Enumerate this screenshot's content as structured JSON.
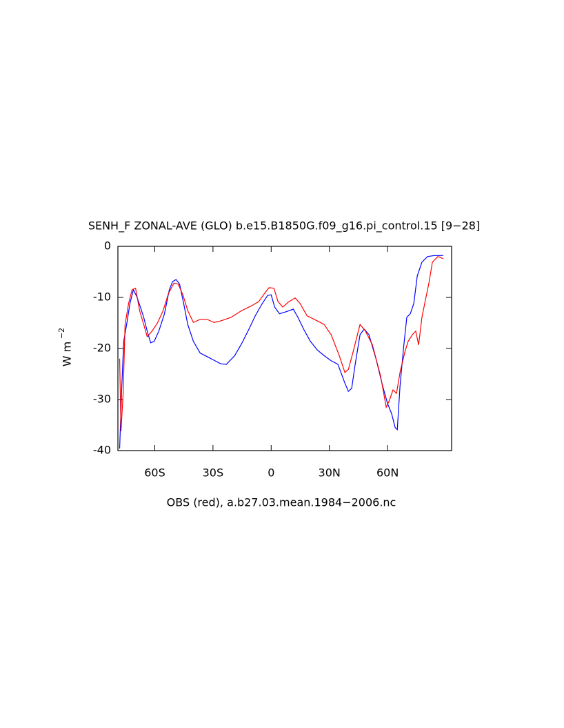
{
  "chart_data": {
    "type": "line",
    "title": "SENH_F ZONAL-AVE (GLO) b.e15.B1850G.f09_g16.pi_control.15 [9−28]",
    "xlabel": "OBS (red), a.b27.03.mean.1984−2006.nc",
    "ylabel": {
      "text": "W m",
      "superscript": "−2"
    },
    "xlim": [
      -79,
      93
    ],
    "ylim": [
      -40,
      0
    ],
    "xticks": [
      {
        "value": -60,
        "label": "60S"
      },
      {
        "value": -30,
        "label": "30S"
      },
      0,
      {
        "value": 30,
        "label": "30N"
      },
      {
        "value": 60,
        "label": "60N"
      }
    ],
    "yticks": [
      0,
      -10,
      -20,
      -30,
      -40
    ],
    "series": [
      {
        "color": "#0000ff",
        "x": [
          -78.1,
          -77,
          -76,
          -74.5,
          -72.8,
          -71,
          -69.2,
          -67.4,
          -65.7,
          -63.9,
          -62.1,
          -60.3,
          -57.9,
          -55,
          -52.5,
          -50.8,
          -49,
          -47.2,
          -45.1,
          -43,
          -40.1,
          -36.6,
          -33,
          -29.5,
          -26,
          -23.1,
          -18.8,
          -15.3,
          -11.7,
          -8.2,
          -4.6,
          -1.8,
          0,
          1.8,
          4.3,
          7.8,
          11.4,
          13.8,
          16.7,
          20.2,
          23.8,
          27.3,
          30.9,
          34.4,
          38,
          39.8,
          41.5,
          43.3,
          45.8,
          47.9,
          50.4,
          54,
          57.5,
          60,
          62.1,
          63.9,
          65,
          66.4,
          68.2,
          69.9,
          71.7,
          73.5,
          75.3,
          77.7,
          80.6,
          84.1,
          88.7
        ],
        "values": [
          -39.6,
          -27.4,
          -18.6,
          -15.3,
          -11.2,
          -8.5,
          -9.9,
          -11.9,
          -13.9,
          -16.6,
          -18.9,
          -18.6,
          -16.6,
          -13.2,
          -8.5,
          -6.9,
          -6.5,
          -7.4,
          -11.2,
          -15.3,
          -18.6,
          -20.9,
          -21.6,
          -22.3,
          -23.0,
          -23.1,
          -21.4,
          -19.1,
          -16.4,
          -13.6,
          -11.2,
          -9.6,
          -9.5,
          -11.9,
          -13.2,
          -12.8,
          -12.3,
          -13.9,
          -16.2,
          -18.6,
          -20.3,
          -21.4,
          -22.4,
          -23.1,
          -26.8,
          -28.4,
          -27.8,
          -23.1,
          -17.3,
          -16.2,
          -17.3,
          -22.0,
          -27.4,
          -30.8,
          -32.8,
          -35.5,
          -35.9,
          -27.4,
          -20,
          -13.9,
          -13.2,
          -11.2,
          -5.8,
          -3.1,
          -2.0,
          -1.8,
          -1.8
        ]
      },
      {
        "color": "#ff0000",
        "x": [
          -78.1,
          -77.4,
          -76.3,
          -75.3,
          -73.5,
          -71.7,
          -69.9,
          -67.8,
          -65.7,
          -63.9,
          -61.4,
          -58.6,
          -55.7,
          -52.9,
          -50.1,
          -47.9,
          -45.4,
          -43,
          -40.1,
          -36.6,
          -33,
          -29.5,
          -26,
          -20.6,
          -15.3,
          -9.9,
          -6.4,
          -2.8,
          -1.1,
          1.4,
          3.5,
          6,
          8.9,
          12.4,
          14.9,
          18.5,
          23.8,
          27.3,
          30.9,
          35.1,
          38,
          39.8,
          42.2,
          45.8,
          48.6,
          52.2,
          56.4,
          59.3,
          61,
          62.8,
          64.6,
          66.4,
          68.9,
          70.6,
          72.8,
          74.5,
          76,
          77.7,
          79.5,
          81.3,
          83.1,
          85.9,
          88.7
        ],
        "values": [
          -22,
          -36.2,
          -28.8,
          -15.3,
          -11.2,
          -8.5,
          -8.2,
          -12.6,
          -15.3,
          -17.7,
          -16.6,
          -15,
          -12.6,
          -9.2,
          -7.2,
          -7.4,
          -9.6,
          -12.6,
          -14.9,
          -14.3,
          -14.3,
          -14.9,
          -14.6,
          -13.9,
          -12.6,
          -11.6,
          -10.8,
          -8.9,
          -8.1,
          -8.2,
          -10.8,
          -11.9,
          -10.9,
          -10.1,
          -11.2,
          -13.6,
          -14.6,
          -15.3,
          -17.3,
          -21.4,
          -24.7,
          -24.1,
          -20.7,
          -15.3,
          -16.6,
          -19.3,
          -25.4,
          -31.5,
          -30.1,
          -28.1,
          -28.8,
          -24.7,
          -20.7,
          -18.6,
          -17.3,
          -16.6,
          -19.3,
          -13.9,
          -10.5,
          -7.2,
          -3.1,
          -2,
          -2.4
        ]
      }
    ]
  }
}
